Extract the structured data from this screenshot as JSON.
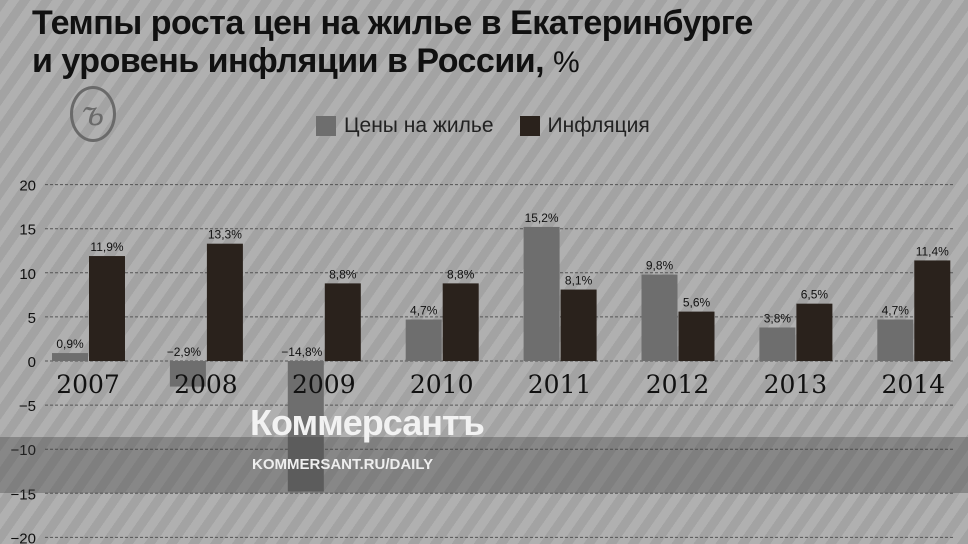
{
  "chart_data": {
    "type": "bar",
    "title_line1": "Темпы роста цен на жилье в Екатеринбурге",
    "title_line2": "и уровень инфляции в России,",
    "title_unit": "%",
    "categories": [
      "2007",
      "2008",
      "2009",
      "2010",
      "2011",
      "2012",
      "2013",
      "2014"
    ],
    "series": [
      {
        "name": "Цены на жилье",
        "color": "#6e6e6e",
        "values": [
          0.9,
          -2.9,
          -14.8,
          4.7,
          15.2,
          9.8,
          3.8,
          4.7
        ],
        "labels": [
          "0,9%",
          "−2,9%",
          "−14,8%",
          "4,7%",
          "15,2%",
          "9,8%",
          "3,8%",
          "4,7%"
        ]
      },
      {
        "name": "Инфляция",
        "color": "#2a221c",
        "values": [
          11.9,
          13.3,
          8.8,
          8.8,
          8.1,
          5.6,
          6.5,
          11.4
        ],
        "labels": [
          "11,9%",
          "13,3%",
          "8,8%",
          "8,8%",
          "8,1%",
          "5,6%",
          "6,5%",
          "11,4%"
        ]
      }
    ],
    "ylim": [
      -20,
      20
    ],
    "yticks": [
      20,
      15,
      10,
      5,
      0,
      -5,
      -10,
      -15,
      -20
    ],
    "ytick_labels": [
      "20",
      "15",
      "10",
      "5",
      "0",
      "−5",
      "−10",
      "−15",
      "−20"
    ],
    "grid": true,
    "legend": "top-center"
  },
  "logo_text": "Ъ",
  "watermark": {
    "brand": "Коммерсантъ",
    "url": "KOMMERSANT.RU/DAILY"
  }
}
